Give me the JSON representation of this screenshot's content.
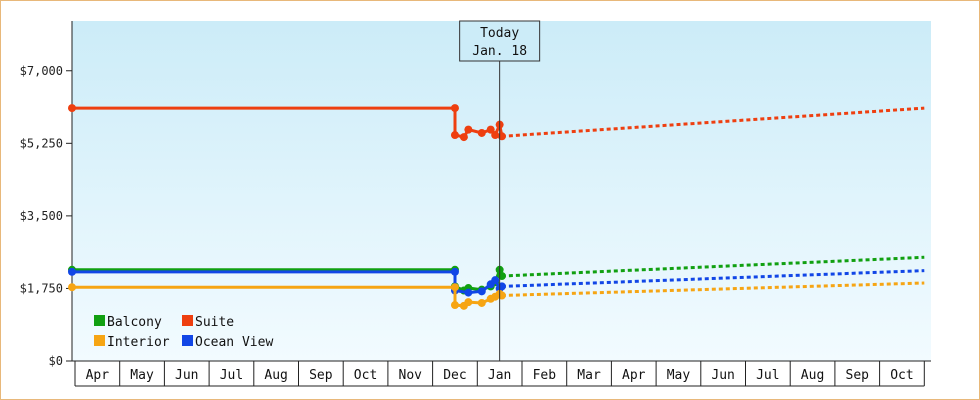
{
  "chart_data": {
    "type": "line",
    "y_ticks": [
      "$0",
      "$1,750",
      "$3,500",
      "$5,250",
      "$7,000"
    ],
    "y_tick_values": [
      0,
      1750,
      3500,
      5250,
      7000
    ],
    "ylim": [
      0,
      8200
    ],
    "months": [
      "Apr",
      "May",
      "Jun",
      "Jul",
      "Aug",
      "Sep",
      "Oct",
      "Nov",
      "Dec",
      "Jan",
      "Feb",
      "Mar",
      "Apr",
      "May",
      "Jun",
      "Jul",
      "Aug",
      "Sep",
      "Oct"
    ],
    "today": {
      "line1": "Today",
      "line2": "Jan. 18",
      "month_index": 9.0
    },
    "legend": [
      {
        "key": "balcony",
        "label": "Balcony",
        "color": "#11a011"
      },
      {
        "key": "suite",
        "label": "Suite",
        "color": "#ee3f10"
      },
      {
        "key": "interior",
        "label": "Interior",
        "color": "#f6a514"
      },
      {
        "key": "ocean",
        "label": "Ocean View",
        "color": "#1146e6"
      }
    ],
    "series": [
      {
        "key": "suite",
        "label": "Suite",
        "color": "#ee3f10",
        "history": [
          [
            -0.5,
            6100
          ],
          [
            8.0,
            6100
          ],
          [
            8.0,
            5450
          ],
          [
            8.2,
            5400
          ],
          [
            8.3,
            5580
          ],
          [
            8.6,
            5500
          ],
          [
            8.8,
            5580
          ],
          [
            8.9,
            5450
          ],
          [
            9.0,
            5700
          ],
          [
            9.05,
            5420
          ]
        ],
        "forecast": [
          [
            9.05,
            5420
          ],
          [
            18.5,
            6100
          ]
        ]
      },
      {
        "key": "balcony",
        "label": "Balcony",
        "color": "#11a011",
        "history": [
          [
            -0.5,
            2200
          ],
          [
            8.0,
            2200
          ],
          [
            8.0,
            1800
          ],
          [
            8.2,
            1700
          ],
          [
            8.3,
            1760
          ],
          [
            8.6,
            1720
          ],
          [
            8.8,
            1800
          ],
          [
            8.9,
            1900
          ],
          [
            9.0,
            2200
          ],
          [
            9.05,
            2050
          ]
        ],
        "forecast": [
          [
            9.05,
            2050
          ],
          [
            18.5,
            2500
          ]
        ]
      },
      {
        "key": "ocean",
        "label": "Ocean View",
        "color": "#1146e6",
        "history": [
          [
            -0.5,
            2150
          ],
          [
            8.0,
            2150
          ],
          [
            8.0,
            1700
          ],
          [
            8.3,
            1650
          ],
          [
            8.6,
            1680
          ],
          [
            8.8,
            1850
          ],
          [
            8.9,
            1950
          ],
          [
            9.0,
            1750
          ],
          [
            9.05,
            1800
          ]
        ],
        "forecast": [
          [
            9.05,
            1800
          ],
          [
            18.5,
            2180
          ]
        ]
      },
      {
        "key": "interior",
        "label": "Interior",
        "color": "#f6a514",
        "history": [
          [
            -0.5,
            1780
          ],
          [
            8.0,
            1780
          ],
          [
            8.0,
            1350
          ],
          [
            8.2,
            1330
          ],
          [
            8.3,
            1420
          ],
          [
            8.6,
            1400
          ],
          [
            8.8,
            1500
          ],
          [
            8.9,
            1550
          ],
          [
            9.0,
            1620
          ],
          [
            9.05,
            1580
          ]
        ],
        "forecast": [
          [
            9.05,
            1580
          ],
          [
            18.5,
            1880
          ]
        ]
      }
    ]
  }
}
